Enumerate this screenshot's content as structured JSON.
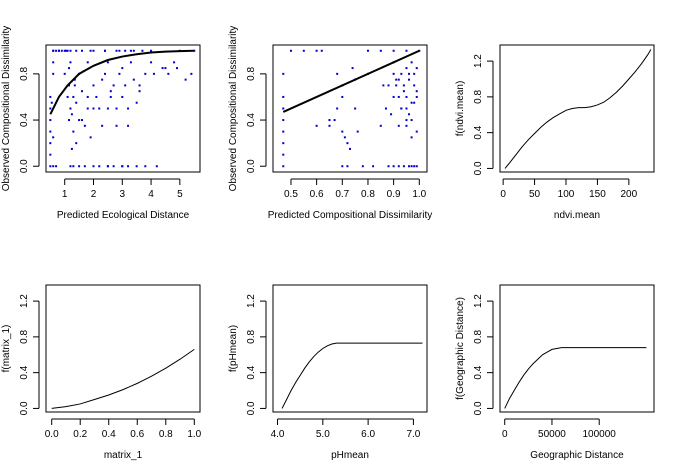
{
  "colors": {
    "points": "#0000cc",
    "line": "#000000",
    "frame": "#000000"
  },
  "chart_data": [
    {
      "type": "scatter",
      "xlabel": "Predicted Ecological Distance",
      "ylabel": "Observed Compositional Dissimilarity",
      "xlim": [
        0.35,
        5.7
      ],
      "ylim": [
        -0.05,
        1.05
      ],
      "xticks": [
        1,
        2,
        3,
        4,
        5
      ],
      "xtick_labels": [
        "1",
        "2",
        "3",
        "4",
        "5"
      ],
      "yticks": [
        0,
        0.4,
        0.8
      ],
      "ytick_labels": [
        "0.0",
        "0.4",
        "0.8"
      ],
      "points_x": [
        0.5,
        0.5,
        0.5,
        0.5,
        0.5,
        0.5,
        0.5,
        0.55,
        0.6,
        0.6,
        0.6,
        0.6,
        0.6,
        0.7,
        0.7,
        0.8,
        0.9,
        1.0,
        1.05,
        1.1,
        1.15,
        1.15,
        1.2,
        1.2,
        1.25,
        1.3,
        1.3,
        1.35,
        1.4,
        1.4,
        1.5,
        1.5,
        1.6,
        1.7,
        1.8,
        1.8,
        1.9,
        2.0,
        2.1,
        2.2,
        2.3,
        2.3,
        2.4,
        2.5,
        2.5,
        2.6,
        2.7,
        2.8,
        2.8,
        2.9,
        3.0,
        3.0,
        3.1,
        3.2,
        3.3,
        3.4,
        3.5,
        3.6,
        3.8,
        4.0,
        4.2,
        4.4,
        4.6,
        4.8,
        5.0,
        5.2,
        5.4,
        5.5,
        1.2,
        1.3,
        1.5,
        1.7,
        2.0,
        2.2,
        2.5,
        2.7,
        3.0,
        3.2,
        3.5,
        3.8,
        1.1,
        1.4,
        1.9,
        2.4,
        2.9,
        3.3,
        0.6,
        0.8,
        1.0,
        1.2,
        1.6,
        2.0,
        2.4,
        2.8,
        3.1,
        3.4,
        3.7,
        4.0,
        1.15,
        1.35,
        1.8,
        2.6,
        3.0,
        3.6,
        4.1,
        4.5,
        4.9,
        3.2,
        2.5,
        2.0,
        1.6,
        1.25
      ],
      "points_y": [
        0.0,
        0.1,
        0.2,
        0.3,
        0.4,
        0.5,
        0.6,
        0.55,
        0.0,
        0.8,
        0.9,
        1.0,
        0.25,
        1.0,
        0.0,
        1.0,
        1.0,
        0.8,
        1.0,
        0.6,
        0.7,
        0.4,
        0.5,
        0.9,
        0.45,
        0.6,
        0.3,
        0.7,
        0.2,
        0.55,
        0.8,
        0.4,
        0.65,
        0.35,
        0.9,
        0.5,
        0.25,
        0.7,
        0.6,
        0.5,
        0.35,
        0.75,
        0.8,
        0.0,
        0.9,
        0.6,
        0.7,
        0.35,
        0.5,
        0.8,
        0.85,
        0.0,
        0.7,
        0.5,
        0.9,
        0.75,
        0.55,
        0.65,
        0.8,
        0.9,
        0.0,
        0.85,
        0.8,
        0.9,
        1.0,
        0.75,
        0.8,
        1.0,
        0.0,
        0.0,
        0.0,
        0.0,
        0.0,
        0.0,
        0.0,
        0.0,
        0.0,
        0.0,
        0.0,
        0.0,
        1.0,
        1.0,
        1.0,
        1.0,
        1.0,
        1.0,
        1.0,
        1.0,
        1.0,
        1.0,
        1.0,
        1.0,
        1.0,
        1.0,
        1.0,
        1.0,
        1.0,
        1.0,
        0.85,
        0.75,
        0.6,
        0.65,
        0.6,
        0.7,
        0.8,
        0.85,
        0.85,
        0.35,
        0.5,
        0.5,
        0.4,
        0.15
      ],
      "curve_x": [
        0.5,
        0.8,
        1.1,
        1.5,
        2.0,
        2.5,
        3.0,
        3.5,
        4.0,
        4.5,
        5.0,
        5.5
      ],
      "curve_y": [
        0.45,
        0.6,
        0.7,
        0.8,
        0.87,
        0.92,
        0.95,
        0.97,
        0.985,
        0.993,
        0.997,
        1.0
      ]
    },
    {
      "type": "scatter",
      "xlabel": "Predicted Compositional Dissimilarity",
      "ylabel": "Observed Compositional Dissimilarity",
      "xlim": [
        0.43,
        1.03
      ],
      "ylim": [
        -0.05,
        1.05
      ],
      "xticks": [
        0.5,
        0.6,
        0.7,
        0.8,
        0.9,
        1.0
      ],
      "xtick_labels": [
        "0.5",
        "0.6",
        "0.7",
        "0.8",
        "0.9",
        "1.0"
      ],
      "yticks": [
        0,
        0.4,
        0.8
      ],
      "ytick_labels": [
        "0.0",
        "0.4",
        "0.8"
      ],
      "points_x": [
        0.47,
        0.47,
        0.47,
        0.47,
        0.47,
        0.47,
        0.47,
        0.47,
        0.5,
        0.55,
        0.6,
        0.62,
        0.65,
        0.67,
        0.68,
        0.7,
        0.7,
        0.71,
        0.72,
        0.73,
        0.75,
        0.76,
        0.78,
        0.8,
        0.82,
        0.85,
        0.87,
        0.88,
        0.9,
        0.9,
        0.91,
        0.92,
        0.93,
        0.94,
        0.95,
        0.95,
        0.96,
        0.97,
        0.98,
        0.98,
        0.99,
        0.99,
        1.0,
        0.9,
        0.92,
        0.94,
        0.96,
        0.97,
        0.98,
        0.99,
        0.93,
        0.95,
        0.97,
        0.99,
        0.91,
        0.94,
        0.96,
        0.98,
        0.88,
        0.92,
        0.95,
        0.97,
        0.7,
        0.72,
        0.68,
        0.74,
        0.75,
        0.8,
        0.85,
        0.9,
        0.95,
        0.6,
        0.65,
        0.7,
        0.9,
        0.93,
        0.96,
        0.99,
        0.97,
        0.95,
        0.92,
        0.89,
        0.86
      ],
      "points_y": [
        0.0,
        0.1,
        0.2,
        0.3,
        0.4,
        0.5,
        0.6,
        0.8,
        1.0,
        1.0,
        1.0,
        1.0,
        0.35,
        0.4,
        0.5,
        0.6,
        0.7,
        0.25,
        0.2,
        0.15,
        0.5,
        0.3,
        0.0,
        0.8,
        0.0,
        0.35,
        0.5,
        0.0,
        0.6,
        0.8,
        0.7,
        0.75,
        0.5,
        0.65,
        0.85,
        0.4,
        0.8,
        0.9,
        0.7,
        0.55,
        0.85,
        0.3,
        1.0,
        0.0,
        0.0,
        0.0,
        0.0,
        0.0,
        0.0,
        0.0,
        0.5,
        0.6,
        0.55,
        0.65,
        0.75,
        0.7,
        0.45,
        0.8,
        0.7,
        0.6,
        0.35,
        0.4,
        0.0,
        0.0,
        0.8,
        0.85,
        0.75,
        1.0,
        1.0,
        1.0,
        1.0,
        0.35,
        0.4,
        0.3,
        0.9,
        0.8,
        0.75,
        0.6,
        0.25,
        0.5,
        0.35,
        0.45,
        0.7
      ],
      "curve_x": [
        0.47,
        1.0
      ],
      "curve_y": [
        0.47,
        1.0
      ]
    },
    {
      "type": "line",
      "xlabel": "ndvi.mean",
      "ylabel": "f(ndvi.mean)",
      "xlim": [
        -5,
        240
      ],
      "ylim": [
        -0.04,
        1.38
      ],
      "xticks": [
        0,
        50,
        100,
        150,
        200
      ],
      "xtick_labels": [
        "0",
        "50",
        "100",
        "150",
        "200"
      ],
      "yticks": [
        0,
        0.4,
        0.8,
        1.2
      ],
      "ytick_labels": [
        "0.0",
        "0.4",
        "0.8",
        "1.2"
      ],
      "x": [
        3,
        10,
        20,
        30,
        40,
        50,
        60,
        70,
        80,
        90,
        100,
        110,
        120,
        130,
        140,
        150,
        160,
        170,
        180,
        190,
        200,
        210,
        220,
        230,
        235
      ],
      "y": [
        0.0,
        0.06,
        0.15,
        0.24,
        0.32,
        0.39,
        0.46,
        0.52,
        0.57,
        0.61,
        0.65,
        0.67,
        0.68,
        0.68,
        0.69,
        0.71,
        0.74,
        0.79,
        0.85,
        0.92,
        1.0,
        1.08,
        1.17,
        1.27,
        1.33
      ]
    },
    {
      "type": "line",
      "xlabel": "matrix_1",
      "ylabel": "f(matrix_1)",
      "xlim": [
        -0.04,
        1.04
      ],
      "ylim": [
        -0.04,
        1.38
      ],
      "xticks": [
        0,
        0.2,
        0.4,
        0.6,
        0.8,
        1.0
      ],
      "xtick_labels": [
        "0.0",
        "0.2",
        "0.4",
        "0.6",
        "0.8",
        "1.0"
      ],
      "yticks": [
        0,
        0.4,
        0.8,
        1.2
      ],
      "ytick_labels": [
        "0.0",
        "0.4",
        "0.8",
        "1.2"
      ],
      "x": [
        0.0,
        0.1,
        0.2,
        0.3,
        0.4,
        0.5,
        0.6,
        0.7,
        0.8,
        0.9,
        1.0
      ],
      "y": [
        0.0,
        0.02,
        0.05,
        0.1,
        0.15,
        0.21,
        0.28,
        0.36,
        0.45,
        0.55,
        0.66
      ]
    },
    {
      "type": "line",
      "xlabel": "pHmean",
      "ylabel": "f(pHmean)",
      "xlim": [
        3.9,
        7.3
      ],
      "ylim": [
        -0.04,
        1.38
      ],
      "xticks": [
        4.0,
        5.0,
        6.0,
        7.0
      ],
      "xtick_labels": [
        "4.0",
        "5.0",
        "6.0",
        "7.0"
      ],
      "yticks": [
        0,
        0.4,
        0.8,
        1.2
      ],
      "ytick_labels": [
        "0.0",
        "0.4",
        "0.8",
        "1.2"
      ],
      "x": [
        4.1,
        4.2,
        4.3,
        4.4,
        4.5,
        4.6,
        4.7,
        4.8,
        4.9,
        5.0,
        5.1,
        5.2,
        5.3,
        5.4,
        6.0,
        6.5,
        7.0,
        7.2
      ],
      "y": [
        0.0,
        0.1,
        0.2,
        0.29,
        0.37,
        0.45,
        0.52,
        0.58,
        0.63,
        0.67,
        0.7,
        0.72,
        0.73,
        0.73,
        0.73,
        0.73,
        0.73,
        0.73
      ]
    },
    {
      "type": "line",
      "xlabel": "Geographic Distance",
      "ylabel": "f(Geographic Distance)",
      "xlim": [
        -5000,
        158000
      ],
      "ylim": [
        -0.04,
        1.38
      ],
      "xticks": [
        0,
        50000,
        100000
      ],
      "xtick_labels": [
        "0",
        "50000",
        "100000"
      ],
      "yticks": [
        0,
        0.4,
        0.8,
        1.2
      ],
      "ytick_labels": [
        "0.0",
        "0.4",
        "0.8",
        "1.2"
      ],
      "x": [
        0,
        5000,
        10000,
        15000,
        20000,
        25000,
        30000,
        35000,
        40000,
        45000,
        50000,
        55000,
        60000,
        65000,
        70000,
        100000,
        150000
      ],
      "y": [
        0.0,
        0.11,
        0.2,
        0.29,
        0.37,
        0.44,
        0.5,
        0.55,
        0.6,
        0.63,
        0.66,
        0.67,
        0.68,
        0.68,
        0.68,
        0.68,
        0.68
      ]
    }
  ]
}
